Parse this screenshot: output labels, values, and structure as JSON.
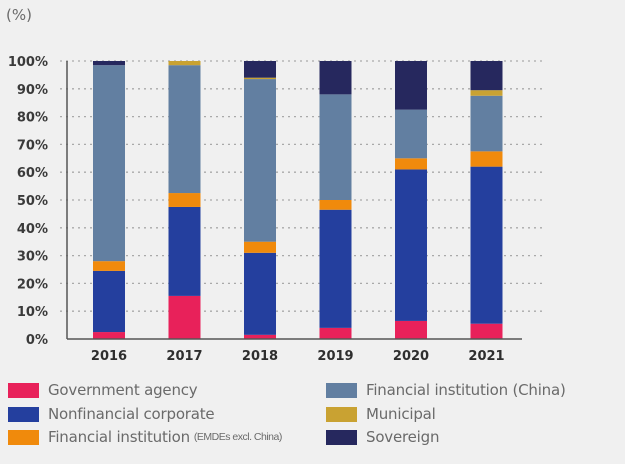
{
  "chart_data": {
    "type": "bar",
    "stacked": true,
    "title": "",
    "unit_label": "(%)",
    "xlabel": "",
    "ylabel": "(%)",
    "ylim": [
      0,
      100
    ],
    "yticks": [
      0,
      10,
      20,
      30,
      40,
      50,
      60,
      70,
      80,
      90,
      100
    ],
    "ytick_labels": [
      "0%",
      "10%",
      "20%",
      "30%",
      "40%",
      "50%",
      "60%",
      "70%",
      "80%",
      "90%",
      "100%"
    ],
    "grid": "horizontal-dotted",
    "legend_position": "bottom",
    "categories": [
      "2016",
      "2017",
      "2018",
      "2019",
      "2020",
      "2021"
    ],
    "series": [
      {
        "name": "Government agency",
        "color": "#e8215a",
        "values": [
          2.5,
          15.5,
          1.5,
          4,
          6.5,
          5.5
        ]
      },
      {
        "name": "Nonfinancial corporate",
        "color": "#243f9e",
        "values": [
          22,
          32,
          29.5,
          42.5,
          54.5,
          56.5
        ]
      },
      {
        "name": "Financial institution",
        "name_note": "(EMDEs excl. China)",
        "color": "#f08a0c",
        "values": [
          3.5,
          5,
          4,
          3.5,
          4,
          5.5
        ]
      },
      {
        "name": "Financial institution (China)",
        "color": "#627fa1",
        "values": [
          70.5,
          46,
          58.5,
          38,
          17.5,
          20
        ]
      },
      {
        "name": "Municipal",
        "color": "#c9a232",
        "values": [
          0,
          1.5,
          0.5,
          0,
          0,
          2
        ]
      },
      {
        "name": "Sovereign",
        "color": "#26285e",
        "values": [
          1.5,
          0,
          6,
          12,
          17.5,
          10.5
        ]
      }
    ]
  },
  "legend_order": [
    0,
    1,
    2,
    3,
    4,
    5
  ]
}
